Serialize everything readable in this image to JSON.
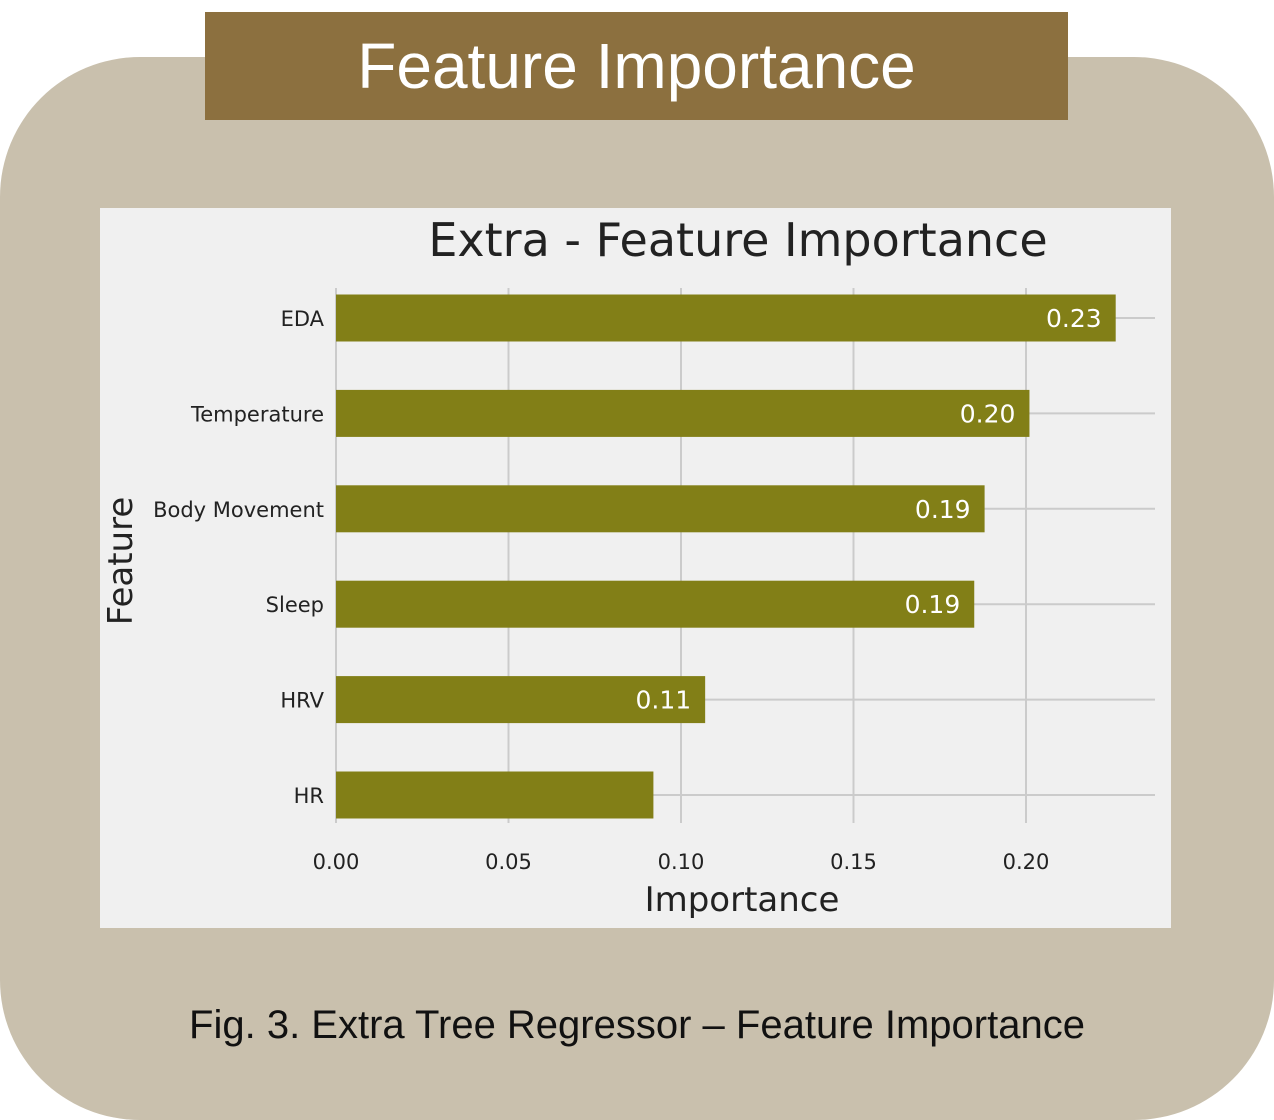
{
  "banner": {
    "title": "Feature Importance"
  },
  "caption": "Fig. 3. Extra Tree Regressor – Feature Importance",
  "colors": {
    "card_bg": "#c9c0ad",
    "banner_bg": "#8c703f",
    "panel_bg": "#f0f0f0",
    "bar": "#827f17",
    "grid": "#cbcbcb"
  },
  "chart_data": {
    "type": "bar",
    "orientation": "horizontal",
    "title": "Extra - Feature Importance",
    "xlabel": "Importance",
    "ylabel": "Feature",
    "categories": [
      "EDA",
      "Temperature",
      "Body Movement",
      "Sleep",
      "HRV",
      "HR"
    ],
    "values": [
      0.226,
      0.201,
      0.188,
      0.185,
      0.107,
      0.092
    ],
    "data_labels": [
      "0.23",
      "0.20",
      "0.19",
      "0.19",
      "0.11",
      ""
    ],
    "xticks": [
      0.0,
      0.05,
      0.1,
      0.15,
      0.2
    ],
    "xtick_labels": [
      "0.00",
      "0.05",
      "0.10",
      "0.15",
      "0.20"
    ],
    "xlim": [
      0,
      0.237
    ],
    "grid": true,
    "legend": "none"
  }
}
